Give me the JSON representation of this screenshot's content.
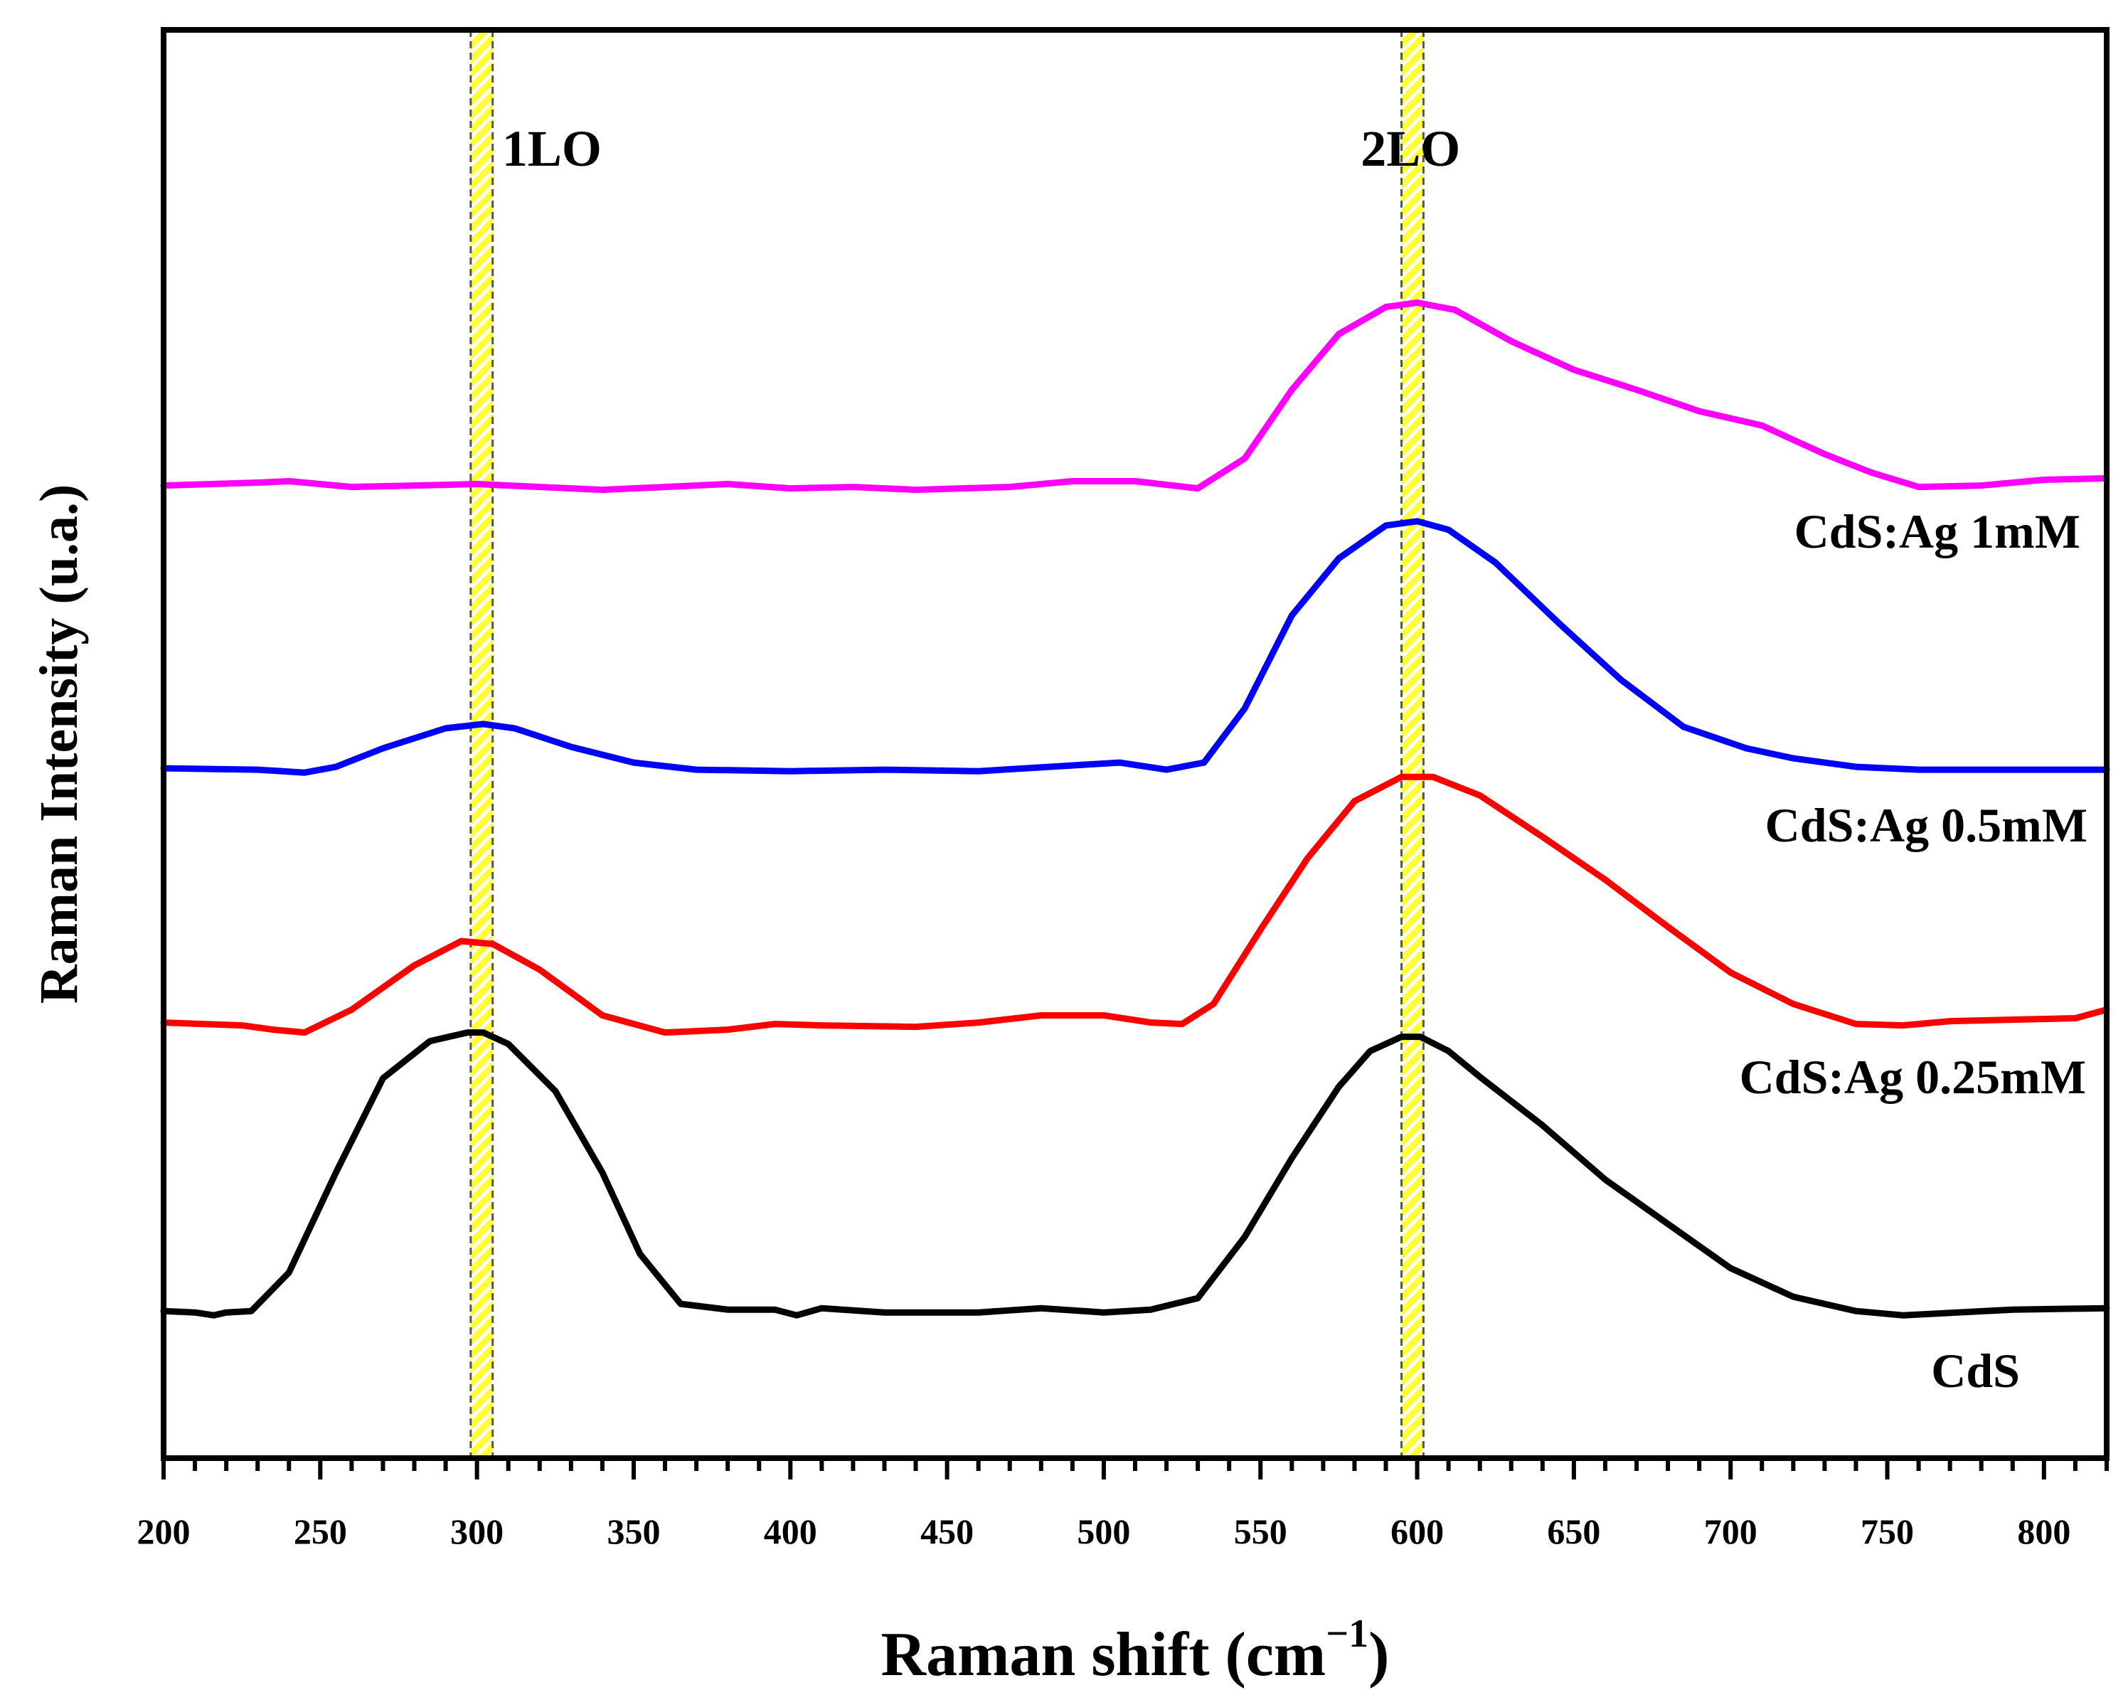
{
  "chart_data": {
    "type": "line",
    "title": "",
    "xlabel": "Raman shift (cm",
    "xlabel_superscript": "−1",
    "xlabel_close": ")",
    "ylabel": "Raman Intensity (u.a.)",
    "xlim": [
      200,
      820
    ],
    "ylim": [
      0,
      1
    ],
    "xticks": [
      200,
      250,
      300,
      350,
      400,
      450,
      500,
      550,
      600,
      650,
      700,
      750,
      800
    ],
    "grid": false,
    "bands": [
      {
        "name": "1LO",
        "center": 301,
        "from": 298,
        "to": 305,
        "color": "#ffff33"
      },
      {
        "name": "2LO",
        "center": 598.5,
        "from": 595,
        "to": 602,
        "color": "#ffff33"
      }
    ],
    "series": [
      {
        "name": "CdS",
        "color": "#000000",
        "points": [
          [
            200,
            0.103
          ],
          [
            210,
            0.102
          ],
          [
            216,
            0.1
          ],
          [
            220,
            0.102
          ],
          [
            228,
            0.103
          ],
          [
            240,
            0.13
          ],
          [
            255,
            0.2
          ],
          [
            270,
            0.266
          ],
          [
            285,
            0.292
          ],
          [
            297,
            0.298
          ],
          [
            302,
            0.298
          ],
          [
            310,
            0.29
          ],
          [
            325,
            0.257
          ],
          [
            340,
            0.2
          ],
          [
            352,
            0.143
          ],
          [
            365,
            0.108
          ],
          [
            380,
            0.104
          ],
          [
            395,
            0.104
          ],
          [
            402,
            0.1
          ],
          [
            410,
            0.105
          ],
          [
            430,
            0.102
          ],
          [
            460,
            0.102
          ],
          [
            480,
            0.105
          ],
          [
            500,
            0.102
          ],
          [
            515,
            0.104
          ],
          [
            530,
            0.112
          ],
          [
            545,
            0.155
          ],
          [
            560,
            0.21
          ],
          [
            575,
            0.26
          ],
          [
            585,
            0.285
          ],
          [
            595,
            0.295
          ],
          [
            601,
            0.295
          ],
          [
            610,
            0.285
          ],
          [
            620,
            0.267
          ],
          [
            640,
            0.233
          ],
          [
            660,
            0.195
          ],
          [
            680,
            0.164
          ],
          [
            700,
            0.133
          ],
          [
            720,
            0.113
          ],
          [
            740,
            0.103
          ],
          [
            755,
            0.1
          ],
          [
            790,
            0.104
          ],
          [
            820,
            0.105
          ]
        ]
      },
      {
        "name": "CdS:Ag 0.25mM",
        "color": "#ff0000",
        "points": [
          [
            200,
            0.305
          ],
          [
            225,
            0.303
          ],
          [
            235,
            0.3
          ],
          [
            245,
            0.298
          ],
          [
            260,
            0.314
          ],
          [
            280,
            0.345
          ],
          [
            295,
            0.362
          ],
          [
            305,
            0.36
          ],
          [
            320,
            0.342
          ],
          [
            340,
            0.31
          ],
          [
            360,
            0.298
          ],
          [
            380,
            0.3
          ],
          [
            395,
            0.304
          ],
          [
            410,
            0.303
          ],
          [
            440,
            0.302
          ],
          [
            460,
            0.305
          ],
          [
            480,
            0.31
          ],
          [
            500,
            0.31
          ],
          [
            515,
            0.305
          ],
          [
            525,
            0.304
          ],
          [
            535,
            0.318
          ],
          [
            550,
            0.37
          ],
          [
            565,
            0.42
          ],
          [
            580,
            0.46
          ],
          [
            595,
            0.477
          ],
          [
            605,
            0.477
          ],
          [
            620,
            0.464
          ],
          [
            640,
            0.435
          ],
          [
            660,
            0.405
          ],
          [
            680,
            0.372
          ],
          [
            700,
            0.34
          ],
          [
            720,
            0.318
          ],
          [
            740,
            0.304
          ],
          [
            755,
            0.303
          ],
          [
            770,
            0.306
          ],
          [
            810,
            0.308
          ],
          [
            820,
            0.314
          ]
        ]
      },
      {
        "name": "CdS:Ag 0.5mM",
        "color": "#0000ff",
        "points": [
          [
            200,
            0.483
          ],
          [
            230,
            0.482
          ],
          [
            245,
            0.48
          ],
          [
            255,
            0.484
          ],
          [
            270,
            0.497
          ],
          [
            290,
            0.511
          ],
          [
            302,
            0.514
          ],
          [
            312,
            0.511
          ],
          [
            330,
            0.498
          ],
          [
            350,
            0.487
          ],
          [
            370,
            0.482
          ],
          [
            400,
            0.481
          ],
          [
            430,
            0.482
          ],
          [
            460,
            0.481
          ],
          [
            490,
            0.485
          ],
          [
            505,
            0.487
          ],
          [
            520,
            0.482
          ],
          [
            532,
            0.487
          ],
          [
            545,
            0.525
          ],
          [
            560,
            0.59
          ],
          [
            575,
            0.63
          ],
          [
            590,
            0.653
          ],
          [
            600,
            0.656
          ],
          [
            610,
            0.65
          ],
          [
            625,
            0.627
          ],
          [
            645,
            0.585
          ],
          [
            665,
            0.545
          ],
          [
            685,
            0.512
          ],
          [
            705,
            0.497
          ],
          [
            720,
            0.49
          ],
          [
            740,
            0.484
          ],
          [
            760,
            0.482
          ],
          [
            790,
            0.482
          ],
          [
            820,
            0.482
          ]
        ]
      },
      {
        "name": "CdS:Ag 1mM",
        "color": "#ff00ff",
        "points": [
          [
            200,
            0.681
          ],
          [
            230,
            0.683
          ],
          [
            240,
            0.684
          ],
          [
            260,
            0.68
          ],
          [
            280,
            0.681
          ],
          [
            300,
            0.682
          ],
          [
            320,
            0.68
          ],
          [
            340,
            0.678
          ],
          [
            360,
            0.68
          ],
          [
            380,
            0.682
          ],
          [
            400,
            0.679
          ],
          [
            420,
            0.68
          ],
          [
            440,
            0.678
          ],
          [
            470,
            0.68
          ],
          [
            490,
            0.684
          ],
          [
            510,
            0.684
          ],
          [
            530,
            0.679
          ],
          [
            545,
            0.7
          ],
          [
            560,
            0.748
          ],
          [
            575,
            0.787
          ],
          [
            590,
            0.806
          ],
          [
            600,
            0.809
          ],
          [
            612,
            0.804
          ],
          [
            630,
            0.782
          ],
          [
            650,
            0.762
          ],
          [
            670,
            0.748
          ],
          [
            690,
            0.733
          ],
          [
            710,
            0.723
          ],
          [
            730,
            0.703
          ],
          [
            745,
            0.69
          ],
          [
            760,
            0.68
          ],
          [
            780,
            0.681
          ],
          [
            800,
            0.685
          ],
          [
            820,
            0.686
          ]
        ]
      }
    ],
    "annotations": [
      {
        "text": "1LO",
        "x": 308,
        "y": 0.905
      },
      {
        "text": "2LO",
        "x": 582,
        "y": 0.905
      },
      {
        "text": "CdS:Ag 1mM",
        "series": "CdS:Ag 1mM"
      },
      {
        "text": "CdS:Ag 0.5mM",
        "series": "CdS:Ag 0.5mM"
      },
      {
        "text": "CdS:Ag 0.25mM",
        "series": "CdS:Ag 0.25mM"
      },
      {
        "text": "CdS",
        "series": "CdS"
      }
    ]
  }
}
